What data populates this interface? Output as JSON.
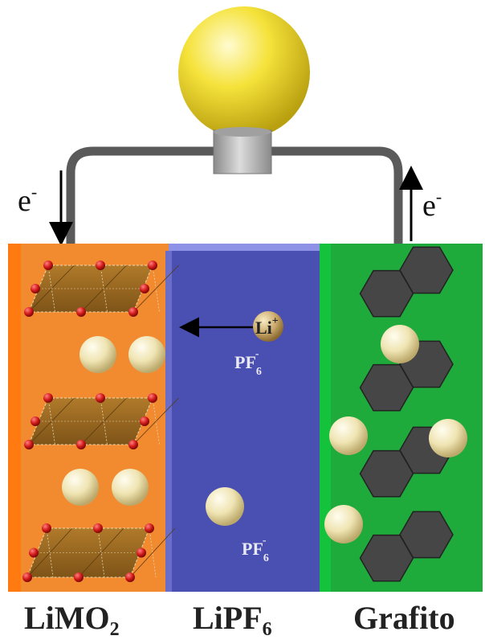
{
  "labels": {
    "cathode": {
      "main": "LiMO",
      "sub": "2"
    },
    "electrolyte": {
      "main": "LiPF",
      "sub": "6"
    },
    "anode": {
      "main": "Grafito"
    },
    "electron_left": {
      "main": "e",
      "sup": "-"
    },
    "electron_right": {
      "main": "e",
      "sup": "-"
    },
    "lithium_ion": {
      "main": "Li",
      "sup": "+"
    },
    "anion_upper": {
      "main": "PF",
      "sub": "6",
      "sup": "-"
    },
    "anion_lower": {
      "main": "PF",
      "sub": "6",
      "sup": "-"
    }
  },
  "colors": {
    "cathode": "#f28a30",
    "electrolyte": "#4a4fb2",
    "anode": "#1faa3c",
    "bulb": "#f3dd2e",
    "wire": "#5a5a5a",
    "socket": "#b9b9b9",
    "lithium_sphere": "#efe6b8",
    "graphite": "#464646",
    "oxide_layer": "#9a6a22",
    "oxygen": "#c4141a"
  },
  "icons": [
    "light-bulb-icon",
    "lithium-ion-sphere-icon",
    "graphite-layer-icon",
    "metal-oxide-layer-icon"
  ]
}
